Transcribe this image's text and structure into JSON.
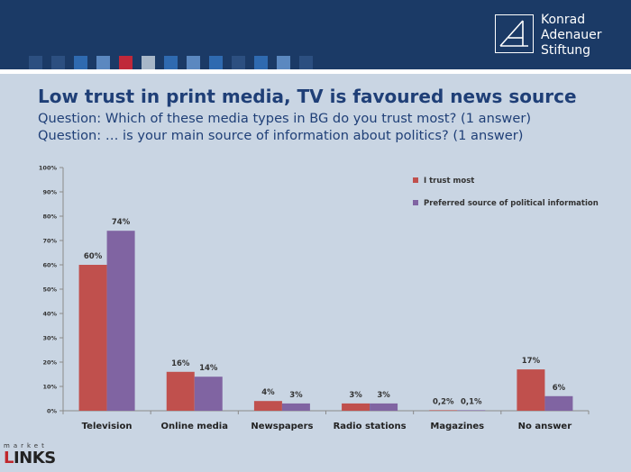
{
  "header": {
    "logo_lines": [
      "Konrad",
      "Adenauer",
      "Stiftung"
    ],
    "square_colors": [
      "#2c4f80",
      "#2c4f80",
      "#2f6ab0",
      "#5b88c0",
      "#c0283a",
      "#a8b7c8",
      "#2f6ab0",
      "#5b88c0",
      "#2f6ab0",
      "#2c4f80",
      "#2f6ab0",
      "#5b88c0",
      "#2c4f80"
    ]
  },
  "slide": {
    "title": "Low trust in print media, TV is favoured news source",
    "question1": "Question: Which of these media types in BG do you trust most? (1 answer)",
    "question2": "Question: … is your main source of information about politics? (1 answer)"
  },
  "footer": {
    "brand_small": "market",
    "brand_big_first": "L",
    "brand_big_rest": "INKS"
  },
  "colors": {
    "series1": "#c0504d",
    "series2": "#8064a2",
    "title": "#1f3f77",
    "header": "#1b3a66"
  },
  "chart_data": {
    "type": "bar",
    "categories": [
      "Television",
      "Online media",
      "Newspapers",
      "Radio stations",
      "Magazines",
      "No answer"
    ],
    "series": [
      {
        "name": "I trust most",
        "values": [
          60,
          16,
          4,
          3,
          0.2,
          17
        ],
        "labels": [
          "60%",
          "16%",
          "4%",
          "3%",
          "0,2%",
          "17%"
        ],
        "color": "#c0504d"
      },
      {
        "name": "Preferred source of political information",
        "values": [
          74,
          14,
          3,
          3,
          0.1,
          6
        ],
        "labels": [
          "74%",
          "14%",
          "3%",
          "3%",
          "0,1%",
          "6%"
        ],
        "color": "#8064a2"
      }
    ],
    "yticks": [
      "0%",
      "10%",
      "20%",
      "30%",
      "40%",
      "50%",
      "60%",
      "70%",
      "80%",
      "90%",
      "100%"
    ],
    "ylim": [
      0,
      100
    ],
    "grid": false,
    "legend": "top-right"
  }
}
